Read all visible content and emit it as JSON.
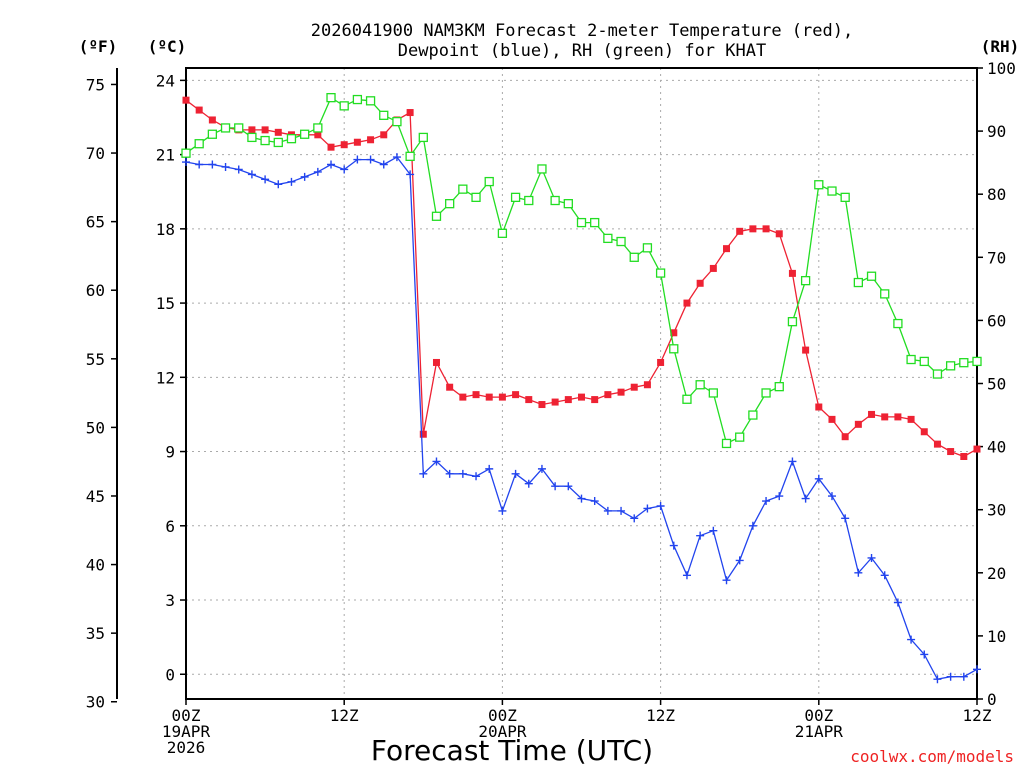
{
  "chart_data": {
    "type": "line",
    "title_lines": [
      "2026041900 NAM3KM Forecast 2-meter Temperature (red),",
      "Dewpoint (blue), RH (green) for KHAT"
    ],
    "xlabel": "Forecast Time (UTC)",
    "credit": "coolwx.com/models",
    "x_range": [
      0,
      60
    ],
    "x_ticks": [
      {
        "hour": 0,
        "lines": [
          "00Z",
          "19APR",
          "2026"
        ]
      },
      {
        "hour": 12,
        "lines": [
          "12Z"
        ]
      },
      {
        "hour": 24,
        "lines": [
          "00Z",
          "20APR"
        ]
      },
      {
        "hour": 36,
        "lines": [
          "12Z"
        ]
      },
      {
        "hour": 48,
        "lines": [
          "00Z",
          "21APR"
        ]
      },
      {
        "hour": 60,
        "lines": [
          "12Z"
        ]
      }
    ],
    "axes": {
      "fahrenheit": {
        "label": "(ºF)",
        "range": [
          30.2,
          76.2
        ],
        "ticks": [
          30,
          35,
          40,
          45,
          50,
          55,
          60,
          65,
          70,
          75
        ]
      },
      "celsius": {
        "label": "(ºC)",
        "range": [
          -1,
          24.5
        ],
        "ticks": [
          0,
          3,
          6,
          9,
          12,
          15,
          18,
          21,
          24
        ]
      },
      "rh": {
        "label": "(RH)",
        "range": [
          0,
          100
        ],
        "ticks": [
          0,
          10,
          20,
          30,
          40,
          50,
          60,
          70,
          80,
          90,
          100
        ]
      }
    },
    "series": [
      {
        "name": "Temperature",
        "units": "°C",
        "color": "#ee2233",
        "marker": "filled-square",
        "values": [
          23.2,
          22.8,
          22.4,
          22.1,
          22.0,
          22.0,
          22.0,
          21.9,
          21.8,
          21.8,
          21.8,
          21.3,
          21.4,
          21.5,
          21.6,
          21.8,
          22.4,
          22.7,
          9.7,
          12.6,
          11.6,
          11.2,
          11.3,
          11.2,
          11.2,
          11.3,
          11.1,
          10.9,
          11.0,
          11.1,
          11.2,
          11.1,
          11.3,
          11.4,
          11.6,
          11.7,
          12.6,
          13.8,
          15.0,
          15.8,
          16.4,
          17.2,
          17.9,
          18.0,
          18.0,
          17.8,
          16.2,
          13.1,
          10.8,
          10.3,
          9.6,
          10.1,
          10.5,
          10.4,
          10.4,
          10.3,
          9.8,
          9.3,
          9.0,
          8.8,
          9.1
        ]
      },
      {
        "name": "Dewpoint",
        "units": "°C",
        "color": "#2244ee",
        "marker": "plus",
        "values": [
          20.7,
          20.6,
          20.6,
          20.5,
          20.4,
          20.2,
          20.0,
          19.8,
          19.9,
          20.1,
          20.3,
          20.6,
          20.4,
          20.8,
          20.8,
          20.6,
          20.9,
          20.2,
          8.1,
          8.6,
          8.1,
          8.1,
          8.0,
          8.3,
          6.6,
          8.1,
          7.7,
          8.3,
          7.6,
          7.6,
          7.1,
          7.0,
          6.6,
          6.6,
          6.3,
          6.7,
          6.8,
          5.2,
          4.0,
          5.6,
          5.8,
          3.8,
          4.6,
          6.0,
          7.0,
          7.2,
          8.6,
          7.1,
          7.9,
          7.2,
          6.3,
          4.1,
          4.7,
          4.0,
          2.9,
          1.4,
          0.8,
          -0.2,
          -0.1,
          -0.1,
          0.2
        ]
      },
      {
        "name": "Relative Humidity",
        "units": "%",
        "color": "#22dd22",
        "marker": "open-square",
        "values": [
          86.5,
          88,
          89.5,
          90.5,
          90.5,
          89,
          88.5,
          88.2,
          88.8,
          89.5,
          90.5,
          95.3,
          94,
          95,
          94.8,
          92.5,
          91.5,
          86,
          89,
          76.5,
          78.5,
          80.8,
          79.5,
          82,
          73.8,
          79.5,
          79,
          84,
          79,
          78.5,
          75.5,
          75.5,
          73,
          72.5,
          70,
          71.5,
          67.5,
          55.5,
          47.5,
          49.8,
          48.5,
          40.5,
          41.5,
          45,
          48.5,
          49.5,
          59.8,
          66.3,
          81.5,
          80.5,
          79.5,
          66,
          67,
          64.2,
          59.5,
          53.8,
          53.5,
          51.5,
          52.8,
          53.3,
          53.5
        ]
      }
    ]
  }
}
